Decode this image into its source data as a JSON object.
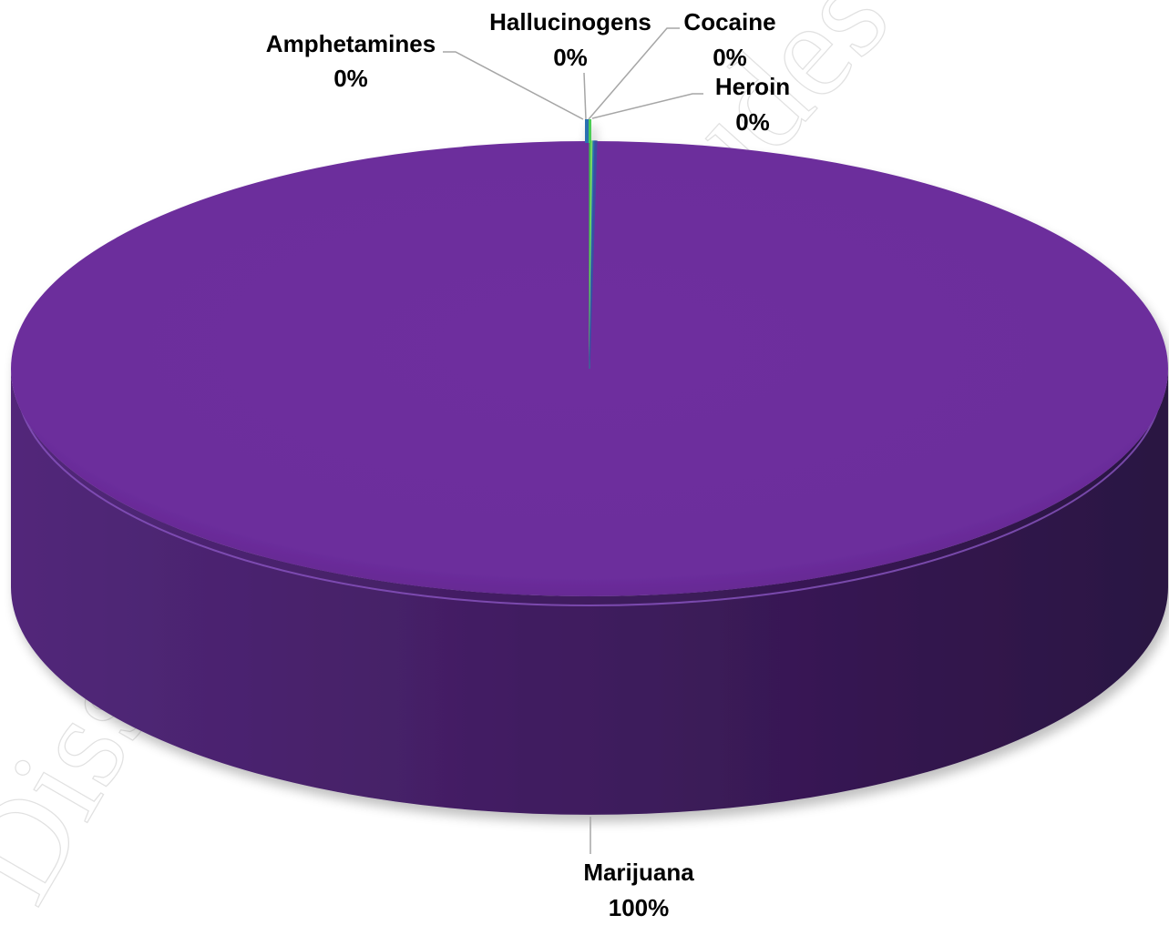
{
  "chart_data": {
    "type": "pie",
    "style": "3d",
    "categories": [
      "Marijuana",
      "Cocaine",
      "Heroin",
      "Hallucinogens",
      "Amphetamines"
    ],
    "values": [
      99.8,
      0.05,
      0.05,
      0.05,
      0.05
    ],
    "labels": [
      {
        "name": "Marijuana",
        "percent": "100%"
      },
      {
        "name": "Cocaine",
        "percent": "0%"
      },
      {
        "name": "Heroin",
        "percent": "0%"
      },
      {
        "name": "Hallucinogens",
        "percent": "0%"
      },
      {
        "name": "Amphetamines",
        "percent": "0%"
      }
    ],
    "colors": {
      "Marijuana": "#6b2e9b",
      "Cocaine": "#3fbf4a",
      "Heroin": "#7fd86a",
      "Hallucinogens": "#2a6fb0",
      "Amphetamines": "#3a4fa0"
    },
    "title": "",
    "legend": "none"
  },
  "watermark": {
    "text_bottom": "Dissen",
    "text_top": "ludes"
  }
}
